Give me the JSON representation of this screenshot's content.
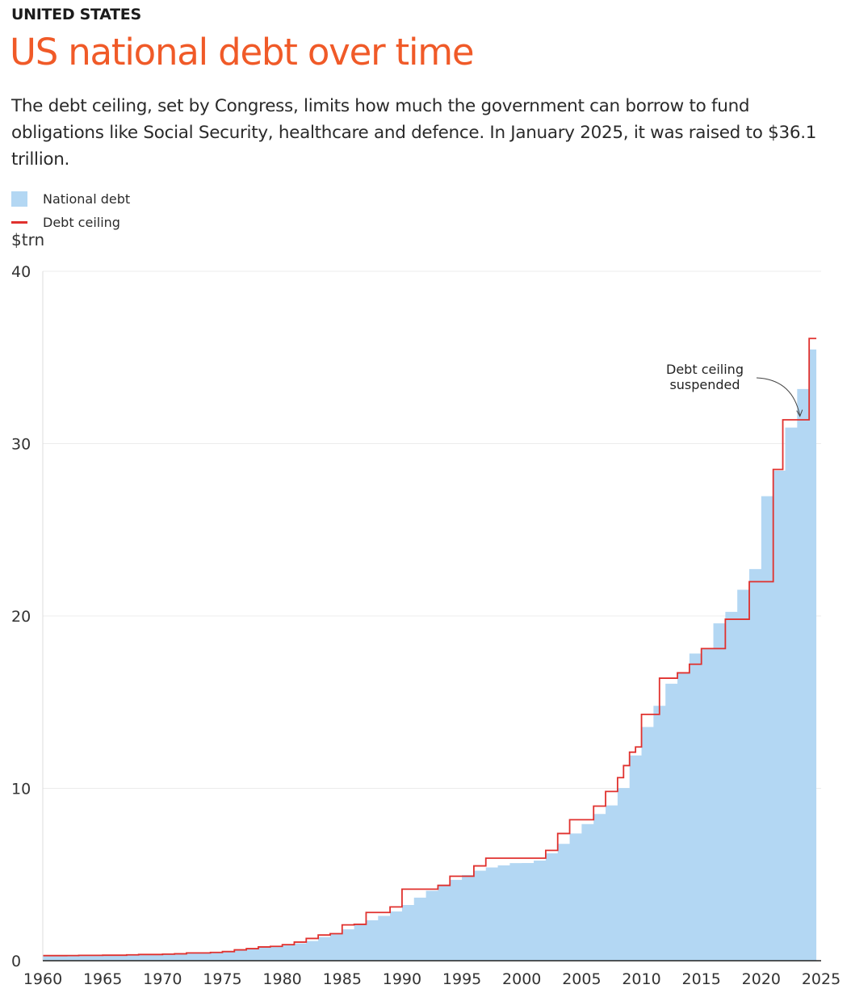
{
  "kicker": "UNITED STATES",
  "title": "US national debt over time",
  "subtitle": "The debt ceiling, set by Congress, limits how much the government can borrow to fund obligations like Social Security, healthcare and defence. In January 2025, it was raised to $36.1 trillion.",
  "colors": {
    "title": "#f05a28",
    "debt_fill": "#b3d7f3",
    "ceiling_line": "#e0312e",
    "grid": "#ececec",
    "axis": "#222222"
  },
  "chart_data": {
    "type": "area",
    "ylabel": "$trn",
    "ylim": [
      0,
      40
    ],
    "xlim": [
      1960,
      2025
    ],
    "y_ticks": [
      0,
      10,
      20,
      30,
      40
    ],
    "x_ticks": [
      1960,
      1965,
      1970,
      1975,
      1980,
      1985,
      1990,
      1995,
      2000,
      2005,
      2010,
      2015,
      2020,
      2025
    ],
    "legend": "top-left",
    "annotation": {
      "text_lines": [
        "Debt ceiling",
        "suspended"
      ],
      "x": 2023.5,
      "y": 31.4
    },
    "series": [
      {
        "name": "National debt",
        "style": "stepped-area",
        "points": [
          [
            1960,
            0.29
          ],
          [
            1961,
            0.29
          ],
          [
            1962,
            0.3
          ],
          [
            1963,
            0.31
          ],
          [
            1964,
            0.32
          ],
          [
            1965,
            0.32
          ],
          [
            1966,
            0.33
          ],
          [
            1967,
            0.34
          ],
          [
            1968,
            0.37
          ],
          [
            1969,
            0.37
          ],
          [
            1970,
            0.38
          ],
          [
            1971,
            0.41
          ],
          [
            1972,
            0.44
          ],
          [
            1973,
            0.47
          ],
          [
            1974,
            0.48
          ],
          [
            1975,
            0.54
          ],
          [
            1976,
            0.63
          ],
          [
            1977,
            0.71
          ],
          [
            1978,
            0.78
          ],
          [
            1979,
            0.83
          ],
          [
            1980,
            0.91
          ],
          [
            1981,
            1.0
          ],
          [
            1982,
            1.14
          ],
          [
            1983,
            1.37
          ],
          [
            1984,
            1.56
          ],
          [
            1985,
            1.82
          ],
          [
            1986,
            2.12
          ],
          [
            1987,
            2.35
          ],
          [
            1988,
            2.6
          ],
          [
            1989,
            2.86
          ],
          [
            1990,
            3.23
          ],
          [
            1991,
            3.66
          ],
          [
            1992,
            4.06
          ],
          [
            1993,
            4.41
          ],
          [
            1994,
            4.69
          ],
          [
            1995,
            4.97
          ],
          [
            1996,
            5.22
          ],
          [
            1997,
            5.41
          ],
          [
            1998,
            5.53
          ],
          [
            1999,
            5.66
          ],
          [
            2000,
            5.67
          ],
          [
            2001,
            5.81
          ],
          [
            2002,
            6.23
          ],
          [
            2003,
            6.78
          ],
          [
            2004,
            7.38
          ],
          [
            2005,
            7.93
          ],
          [
            2006,
            8.51
          ],
          [
            2007,
            9.01
          ],
          [
            2008,
            10.02
          ],
          [
            2009,
            11.91
          ],
          [
            2010,
            13.56
          ],
          [
            2011,
            14.79
          ],
          [
            2012,
            16.07
          ],
          [
            2013,
            16.74
          ],
          [
            2014,
            17.82
          ],
          [
            2015,
            18.15
          ],
          [
            2016,
            19.57
          ],
          [
            2017,
            20.24
          ],
          [
            2018,
            21.52
          ],
          [
            2019,
            22.72
          ],
          [
            2020,
            26.95
          ],
          [
            2021,
            28.43
          ],
          [
            2022,
            30.93
          ],
          [
            2023,
            33.17
          ],
          [
            2024,
            35.46
          ],
          [
            2024.6,
            35.46
          ]
        ]
      },
      {
        "name": "Debt ceiling",
        "style": "step-line",
        "points": [
          [
            1960,
            0.295
          ],
          [
            1962,
            0.3
          ],
          [
            1963,
            0.31
          ],
          [
            1965,
            0.32
          ],
          [
            1967,
            0.34
          ],
          [
            1968,
            0.36
          ],
          [
            1970,
            0.38
          ],
          [
            1971,
            0.4
          ],
          [
            1972,
            0.45
          ],
          [
            1974,
            0.48
          ],
          [
            1975,
            0.53
          ],
          [
            1976,
            0.63
          ],
          [
            1977,
            0.7
          ],
          [
            1978,
            0.8
          ],
          [
            1979,
            0.83
          ],
          [
            1980,
            0.93
          ],
          [
            1981,
            1.08
          ],
          [
            1982,
            1.29
          ],
          [
            1983,
            1.49
          ],
          [
            1984,
            1.57
          ],
          [
            1985,
            2.08
          ],
          [
            1986,
            2.11
          ],
          [
            1987,
            2.8
          ],
          [
            1988,
            2.8
          ],
          [
            1989,
            3.12
          ],
          [
            1990,
            4.15
          ],
          [
            1991,
            4.15
          ],
          [
            1992,
            4.15
          ],
          [
            1993,
            4.37
          ],
          [
            1994,
            4.9
          ],
          [
            1995,
            4.9
          ],
          [
            1996,
            5.5
          ],
          [
            1997,
            5.95
          ],
          [
            1998,
            5.95
          ],
          [
            1999,
            5.95
          ],
          [
            2000,
            5.95
          ],
          [
            2001,
            5.95
          ],
          [
            2002,
            6.4
          ],
          [
            2003,
            7.38
          ],
          [
            2004,
            8.18
          ],
          [
            2005,
            8.18
          ],
          [
            2006,
            8.97
          ],
          [
            2007,
            9.82
          ],
          [
            2008,
            10.62
          ],
          [
            2008.5,
            11.32
          ],
          [
            2009,
            12.1
          ],
          [
            2009.5,
            12.4
          ],
          [
            2010,
            14.29
          ],
          [
            2011,
            14.29
          ],
          [
            2011.5,
            16.39
          ],
          [
            2013,
            16.7
          ],
          [
            2014,
            17.2
          ],
          [
            2015,
            18.11
          ],
          [
            2016,
            18.11
          ],
          [
            2017,
            19.81
          ],
          [
            2018,
            19.81
          ],
          [
            2019,
            21.99
          ],
          [
            2020,
            21.99
          ],
          [
            2021,
            28.5
          ],
          [
            2021.8,
            31.38
          ],
          [
            2023,
            31.38
          ],
          [
            2023.2,
            31.38
          ],
          [
            2024,
            36.1
          ],
          [
            2024.6,
            36.1
          ]
        ]
      }
    ]
  }
}
